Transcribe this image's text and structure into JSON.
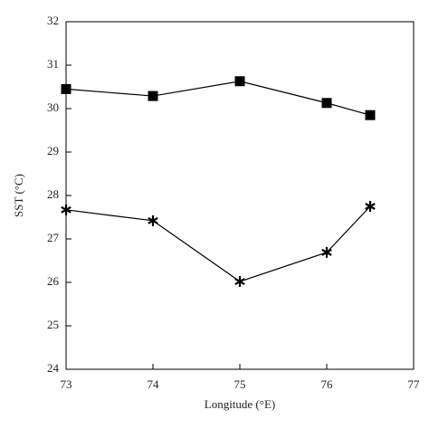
{
  "chart_data": {
    "type": "line",
    "x_label": "Longitude (°E)",
    "y_label": "SST (°C)",
    "x": [
      73,
      74,
      75,
      76,
      76.5
    ],
    "series": [
      {
        "color": "#000000",
        "marker": "square",
        "values": [
          30.45,
          30.29,
          30.63,
          30.13,
          29.85
        ]
      },
      {
        "color": "#000000",
        "marker": "asterisk",
        "values": [
          27.67,
          27.42,
          26.02,
          26.69,
          27.75
        ]
      }
    ],
    "xlim": [
      73,
      77
    ],
    "xticks": [
      73,
      74,
      75,
      76,
      77
    ],
    "ylim": [
      24,
      32
    ],
    "yticks": [
      24,
      25,
      26,
      27,
      28,
      29,
      30,
      31,
      32
    ]
  }
}
